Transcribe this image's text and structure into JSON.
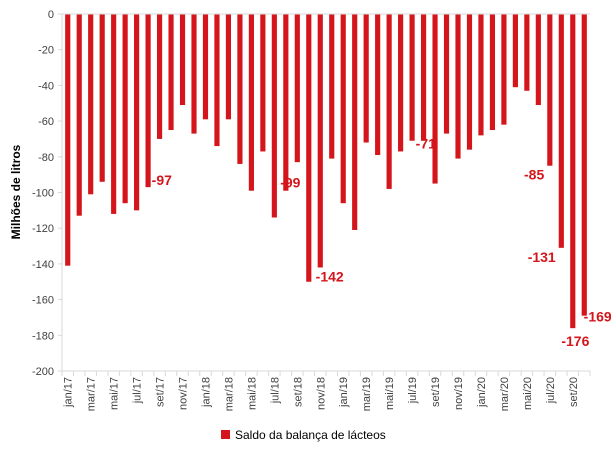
{
  "chart_data": {
    "type": "bar",
    "title": "",
    "ylabel": "Milhões de litros",
    "xlabel": "",
    "ylim": [
      -200,
      0
    ],
    "yticks": [
      0,
      -20,
      -40,
      -60,
      -80,
      -100,
      -120,
      -140,
      -160,
      -180,
      -200
    ],
    "grid": false,
    "legend_position": "bottom",
    "bar_color": "#d4161c",
    "label_color": "#d4161c",
    "categories": [
      "jan/17",
      "fev/17",
      "mar/17",
      "abr/17",
      "mai/17",
      "jun/17",
      "jul/17",
      "ago/17",
      "set/17",
      "out/17",
      "nov/17",
      "dez/17",
      "jan/18",
      "fev/18",
      "mar/18",
      "abr/18",
      "mai/18",
      "jun/18",
      "jul/18",
      "ago/18",
      "set/18",
      "out/18",
      "nov/18",
      "dez/18",
      "jan/19",
      "fev/19",
      "mar/19",
      "abr/19",
      "mai/19",
      "jun/19",
      "jul/19",
      "ago/19",
      "set/19",
      "out/19",
      "nov/19",
      "dez/19",
      "jan/20",
      "fev/20",
      "mar/20",
      "abr/20",
      "mai/20",
      "jun/20",
      "jul/20",
      "ago/20",
      "set/20",
      "out/20"
    ],
    "tick_labels": [
      "jan/17",
      "mar/17",
      "mai/17",
      "jul/17",
      "set/17",
      "nov/17",
      "jan/18",
      "mar/18",
      "mai/18",
      "jul/18",
      "set/18",
      "nov/18",
      "jan/19",
      "mar/19",
      "mai/19",
      "jul/19",
      "set/19",
      "nov/19",
      "jan/20",
      "mar/20",
      "mai/20",
      "jul/20",
      "set/20"
    ],
    "series": [
      {
        "name": "Saldo da balança de lácteos",
        "values": [
          -141,
          -113,
          -101,
          -94,
          -112,
          -106,
          -110,
          -97,
          -70,
          -65,
          -51,
          -67,
          -59,
          -74,
          -59,
          -84,
          -99,
          -77,
          -114,
          -99,
          -83,
          -150,
          -142,
          -81,
          -106,
          -121,
          -72,
          -79,
          -98,
          -77,
          -71,
          -71,
          -95,
          -67,
          -81,
          -76,
          -68,
          -65,
          -62,
          -41,
          -43,
          -51,
          -85,
          -131,
          -176,
          -169
        ]
      }
    ],
    "data_labels": [
      {
        "index": 7,
        "text": "-97"
      },
      {
        "index": 19,
        "text": "-99"
      },
      {
        "index": 22,
        "text": "-142"
      },
      {
        "index": 30,
        "text": "-71"
      },
      {
        "index": 42,
        "text": "-85"
      },
      {
        "index": 43,
        "text": "-131"
      },
      {
        "index": 44,
        "text": "-176"
      },
      {
        "index": 45,
        "text": "-169"
      }
    ]
  },
  "legend": {
    "label": "Saldo da balança de lácteos",
    "color": "#d4161c"
  }
}
